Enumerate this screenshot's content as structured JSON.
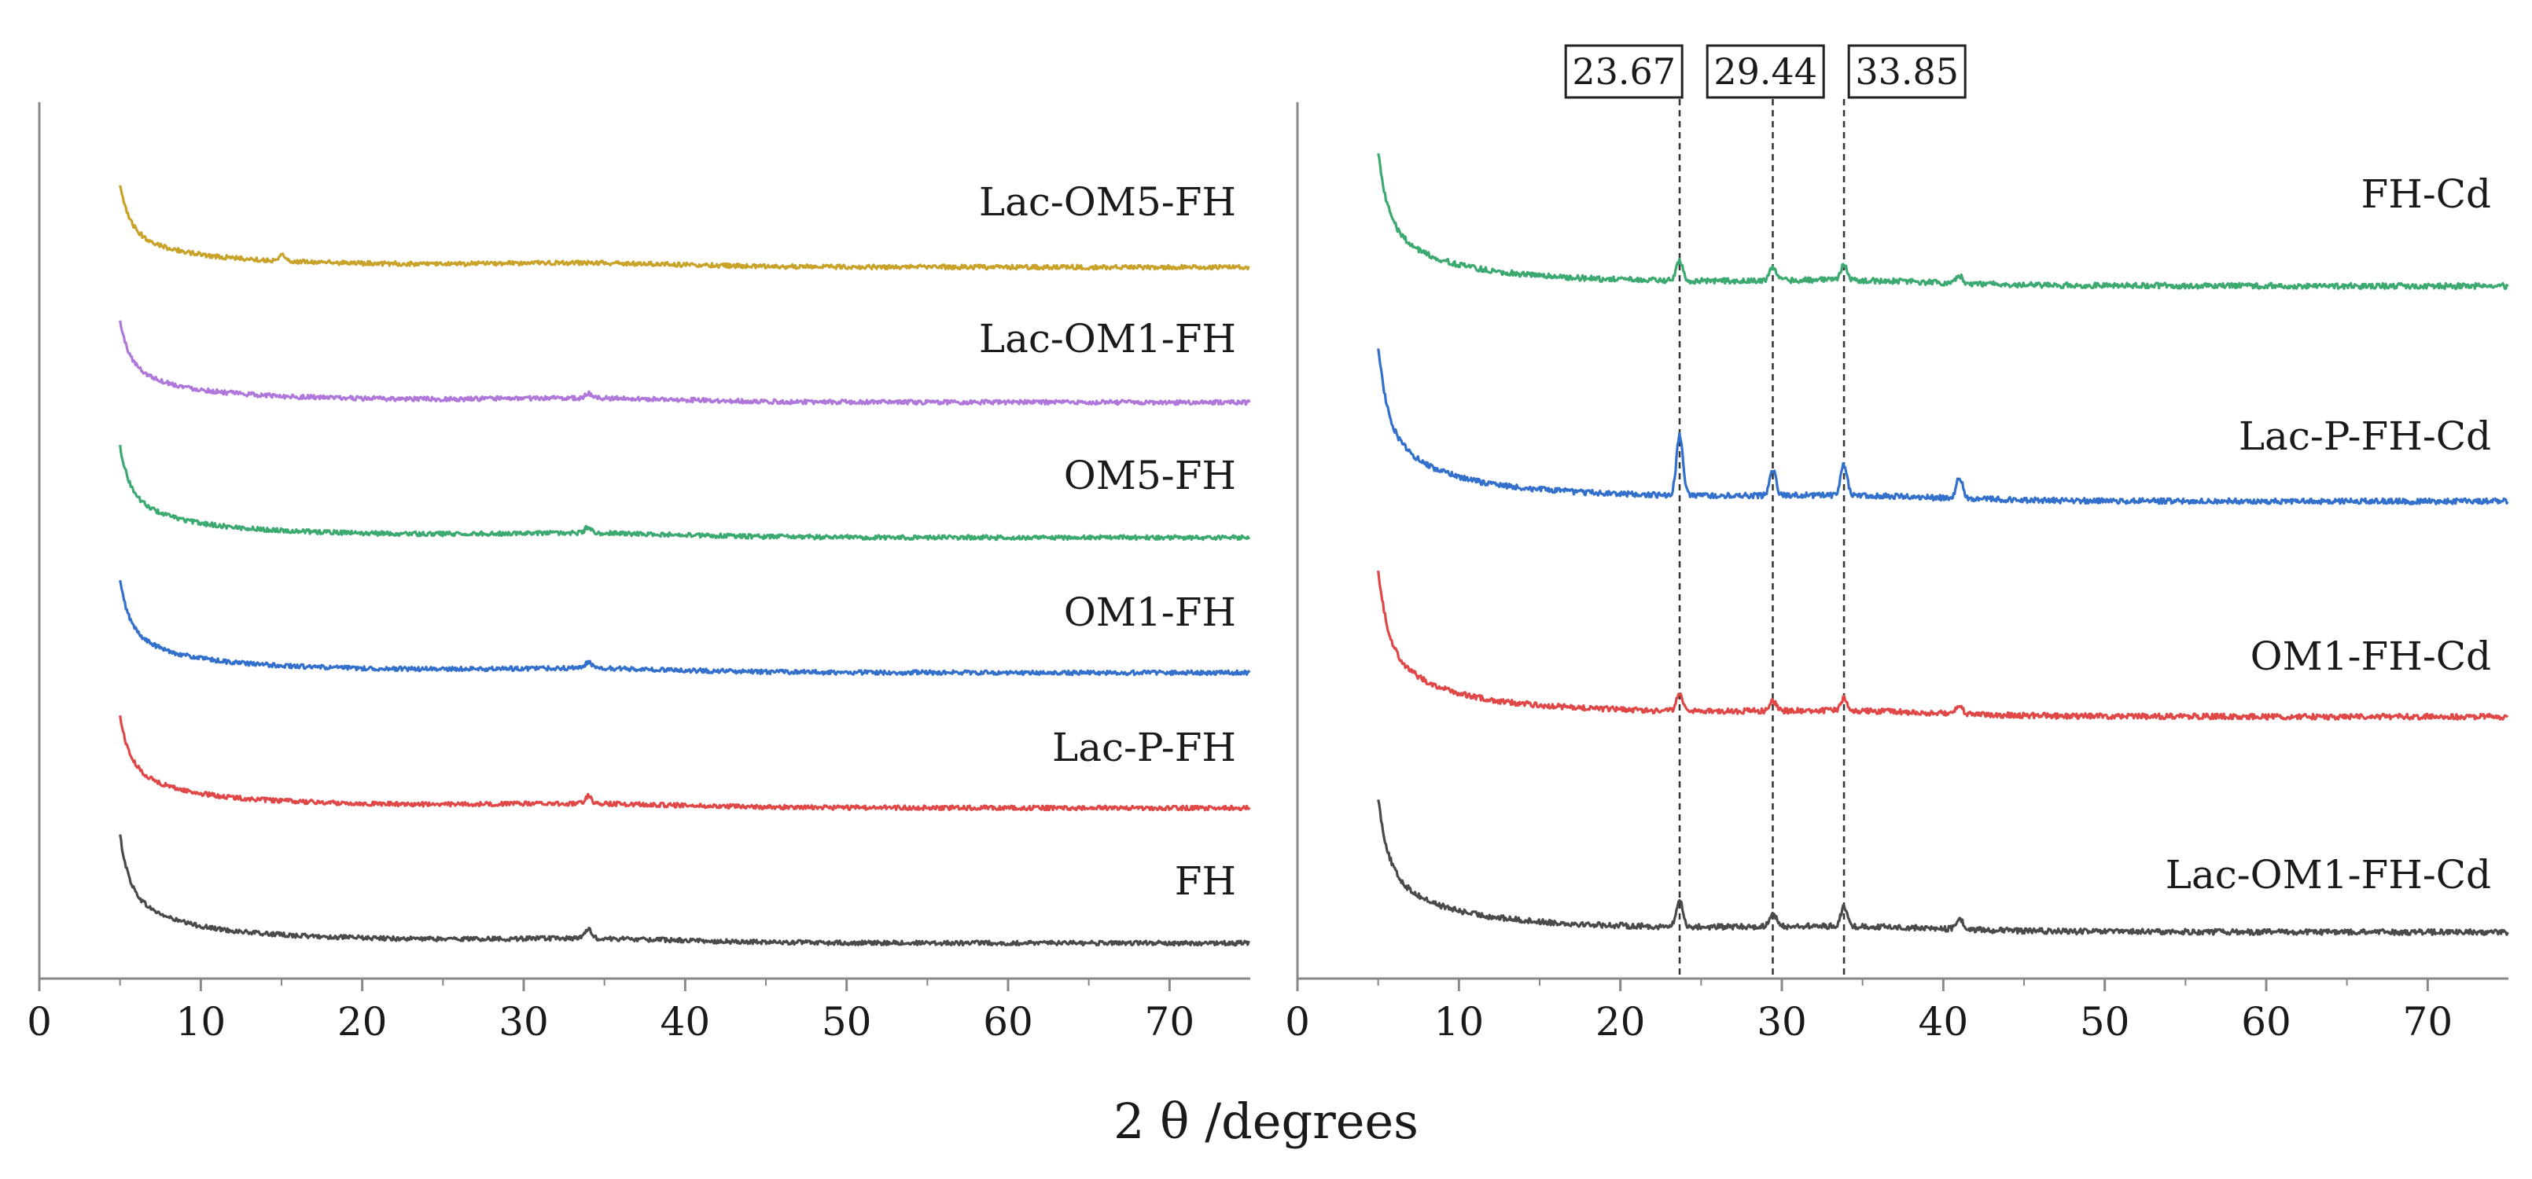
{
  "chart_data": {
    "xlabel": "2 θ /degrees",
    "panels": [
      {
        "type": "line",
        "xlim": [
          0,
          75
        ],
        "xticks": [
          0,
          10,
          20,
          30,
          40,
          50,
          60,
          70
        ],
        "series": [
          {
            "name": "FH",
            "color": "#4a4a4a",
            "start": 5,
            "end": 75,
            "baseline_level": 0.0,
            "spike_height": 1.0,
            "peaks": [
              {
                "x": 34,
                "h": 0.08
              }
            ]
          },
          {
            "name": "Lac-P-FH",
            "color": "#e04848",
            "start": 5,
            "end": 75,
            "baseline_level": 1.0,
            "spike_height": 0.85,
            "peaks": [
              {
                "x": 34,
                "h": 0.06
              }
            ]
          },
          {
            "name": "OM1-FH",
            "color": "#3370cc",
            "start": 5,
            "end": 75,
            "baseline_level": 2.0,
            "spike_height": 0.85,
            "peaks": [
              {
                "x": 34,
                "h": 0.05
              }
            ]
          },
          {
            "name": "OM5-FH",
            "color": "#3caa70",
            "start": 5,
            "end": 75,
            "baseline_level": 3.0,
            "spike_height": 0.85,
            "peaks": [
              {
                "x": 34,
                "h": 0.05
              }
            ]
          },
          {
            "name": "Lac-OM1-FH",
            "color": "#b077db",
            "start": 5,
            "end": 75,
            "baseline_level": 4.0,
            "spike_height": 0.75,
            "peaks": [
              {
                "x": 34,
                "h": 0.04
              }
            ]
          },
          {
            "name": "Lac-OM5-FH",
            "color": "#c9a22a",
            "start": 5,
            "end": 75,
            "baseline_level": 5.0,
            "spike_height": 0.75,
            "peaks": [
              {
                "x": 15,
                "h": 0.05
              }
            ]
          }
        ]
      },
      {
        "type": "line",
        "xlim": [
          0,
          75
        ],
        "xticks": [
          0,
          10,
          20,
          30,
          40,
          50,
          60,
          70
        ],
        "reference_lines": [
          {
            "x": 23.67,
            "label": "23.67"
          },
          {
            "x": 29.44,
            "label": "29.44"
          },
          {
            "x": 33.85,
            "label": "33.85"
          }
        ],
        "series": [
          {
            "name": "Lac-OM1-FH-Cd",
            "color": "#4a4a4a",
            "start": 5,
            "end": 75,
            "baseline_level": 0.0,
            "spike_height": 1.0,
            "peaks": [
              {
                "x": 23.67,
                "h": 0.17
              },
              {
                "x": 29.44,
                "h": 0.09
              },
              {
                "x": 33.85,
                "h": 0.12
              },
              {
                "x": 41,
                "h": 0.07
              }
            ]
          },
          {
            "name": "OM1-FH-Cd",
            "color": "#e04848",
            "start": 5,
            "end": 75,
            "baseline_level": 1.0,
            "spike_height": 1.1,
            "peaks": [
              {
                "x": 23.67,
                "h": 0.12
              },
              {
                "x": 29.44,
                "h": 0.06
              },
              {
                "x": 33.85,
                "h": 0.08
              },
              {
                "x": 41,
                "h": 0.05
              }
            ]
          },
          {
            "name": "Lac-P-FH-Cd",
            "color": "#3370cc",
            "start": 5,
            "end": 75,
            "baseline_level": 2.0,
            "spike_height": 1.15,
            "peaks": [
              {
                "x": 23.67,
                "h": 0.38
              },
              {
                "x": 29.44,
                "h": 0.16
              },
              {
                "x": 33.85,
                "h": 0.2
              },
              {
                "x": 41,
                "h": 0.13
              }
            ]
          },
          {
            "name": "FH-Cd",
            "color": "#3caa70",
            "start": 5,
            "end": 75,
            "baseline_level": 3.0,
            "spike_height": 1.0,
            "peaks": [
              {
                "x": 23.67,
                "h": 0.13
              },
              {
                "x": 29.44,
                "h": 0.08
              },
              {
                "x": 33.85,
                "h": 0.1
              },
              {
                "x": 41,
                "h": 0.05
              }
            ]
          }
        ]
      }
    ]
  }
}
